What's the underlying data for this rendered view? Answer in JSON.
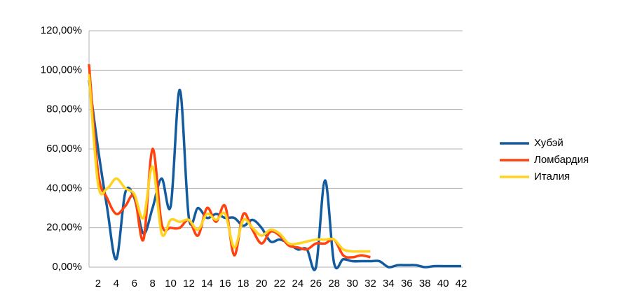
{
  "chart_data": {
    "type": "line",
    "categories": [
      null,
      "2",
      null,
      "4",
      null,
      "6",
      null,
      "8",
      null,
      "10",
      null,
      "12",
      null,
      "14",
      null,
      "16",
      null,
      "18",
      null,
      "20",
      null,
      "22",
      null,
      "24",
      null,
      "26",
      null,
      "28",
      null,
      "30",
      null,
      "32",
      null,
      "34",
      null,
      "36",
      null,
      "38",
      null,
      "40",
      null,
      "42"
    ],
    "series": [
      {
        "name": "Хубэй",
        "color": "#135b9f",
        "values": [
          95,
          60,
          30,
          4,
          38,
          35,
          17,
          30,
          45,
          31,
          90,
          25,
          30,
          25,
          27,
          25,
          25,
          21,
          24,
          20,
          13,
          14,
          12,
          9,
          9,
          0,
          44,
          2,
          4,
          3,
          3,
          3,
          3,
          0,
          1,
          1,
          1,
          0,
          0.5,
          0.5,
          0.5,
          0.5
        ]
      },
      {
        "name": "Ломбардия",
        "color": "#ff420e",
        "values": [
          103,
          48,
          35,
          27,
          31,
          36,
          14,
          60,
          22,
          20,
          20,
          24,
          16,
          30,
          23,
          31,
          6,
          27,
          19,
          12,
          18,
          16,
          11,
          10,
          9,
          12,
          12,
          14,
          6,
          5,
          6,
          5,
          null,
          null,
          null,
          null,
          null,
          null,
          null,
          null,
          null,
          null
        ]
      },
      {
        "name": "Италия",
        "color": "#ffd320",
        "values": [
          98,
          42,
          40,
          45,
          40,
          37,
          25,
          51,
          17,
          24,
          23,
          24,
          19,
          27,
          24,
          27,
          10,
          24,
          20,
          16,
          19,
          17,
          12,
          12,
          13,
          14,
          14,
          14,
          9,
          8,
          8,
          8,
          null,
          null,
          null,
          null,
          null,
          null,
          null,
          null,
          null,
          null
        ]
      }
    ],
    "ylim": [
      0,
      120
    ],
    "yticks": [
      {
        "value": 0,
        "label": "0,00%"
      },
      {
        "value": 20,
        "label": "20,00%"
      },
      {
        "value": 40,
        "label": "40,00%"
      },
      {
        "value": 60,
        "label": "60,00%"
      },
      {
        "value": 80,
        "label": "80,00%"
      },
      {
        "value": 100,
        "label": "100,00%"
      },
      {
        "value": 120,
        "label": "120,00%"
      }
    ],
    "grid": true,
    "legend": "right"
  }
}
